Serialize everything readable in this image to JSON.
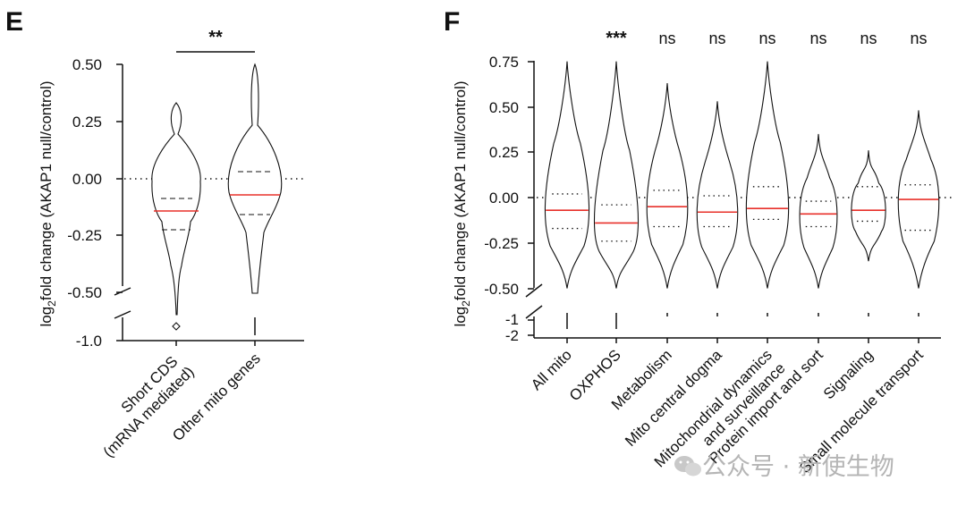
{
  "chart_data": [
    {
      "panel": "E",
      "type": "violin",
      "ylabel_prefix": "log",
      "ylabel_sub": "2",
      "ylabel_rest": "fold change (AKAP1 null/control)",
      "yticks_upper": [
        "0.50",
        "0.25",
        "0.00",
        "-0.25",
        "-0.50"
      ],
      "yticks_lower": [
        "-1.0"
      ],
      "ylim_upper": [
        -0.5,
        0.5
      ],
      "ylim_lower": [
        -1.0,
        -1.0
      ],
      "reference_line": 0.0,
      "significance": "**",
      "categories": [
        {
          "label_lines": [
            "Short CDS",
            "(mRNA mediated)"
          ],
          "median": -0.14,
          "q1": -0.22,
          "q3": -0.08,
          "max": 0.33,
          "min": -0.5,
          "outlier": -0.93
        },
        {
          "label_lines": [
            "Other mito genes"
          ],
          "median": -0.07,
          "q1": -0.16,
          "q3": 0.03,
          "max": 0.5,
          "min": -0.5,
          "outlier": -0.95
        }
      ]
    },
    {
      "panel": "F",
      "type": "violin",
      "ylabel_prefix": "log",
      "ylabel_sub": "2",
      "ylabel_rest": "fold change (AKAP1 null/control)",
      "yticks_upper": [
        "0.75",
        "0.50",
        "0.25",
        "0.00",
        "-0.25",
        "-0.50"
      ],
      "yticks_lower": [
        "-1",
        "-2"
      ],
      "ylim_upper": [
        -0.5,
        0.75
      ],
      "ylim_lower": [
        -2,
        -1
      ],
      "reference_line": 0.0,
      "significance": [
        "***",
        "ns",
        "ns",
        "ns",
        "ns",
        "ns",
        "ns"
      ],
      "categories": [
        {
          "label_lines": [
            "All mito"
          ],
          "median": -0.07,
          "q1": -0.17,
          "q3": 0.02,
          "max": 0.75,
          "min": -0.5
        },
        {
          "label_lines": [
            "OXPHOS"
          ],
          "median": -0.14,
          "q1": -0.24,
          "q3": -0.04,
          "max": 0.75,
          "min": -0.5
        },
        {
          "label_lines": [
            "Metabolism"
          ],
          "median": -0.05,
          "q1": -0.16,
          "q3": 0.04,
          "max": 0.63,
          "min": -0.5
        },
        {
          "label_lines": [
            "Mito central dogma"
          ],
          "median": -0.08,
          "q1": -0.16,
          "q3": 0.01,
          "max": 0.53,
          "min": -0.5
        },
        {
          "label_lines": [
            "Mitochondrial dynamics",
            "and surveillance"
          ],
          "median": -0.06,
          "q1": -0.12,
          "q3": 0.06,
          "max": 0.75,
          "min": -0.5
        },
        {
          "label_lines": [
            "Protein import and sort"
          ],
          "median": -0.09,
          "q1": -0.16,
          "q3": -0.02,
          "max": 0.35,
          "min": -0.5
        },
        {
          "label_lines": [
            "Signaling"
          ],
          "median": -0.07,
          "q1": -0.13,
          "q3": 0.06,
          "max": 0.26,
          "min": -0.35
        },
        {
          "label_lines": [
            "Small molecule transport"
          ],
          "median": -0.01,
          "q1": -0.18,
          "q3": 0.07,
          "max": 0.48,
          "min": -0.5
        }
      ]
    }
  ],
  "watermark": {
    "text": "公众号 · 新使生物"
  }
}
